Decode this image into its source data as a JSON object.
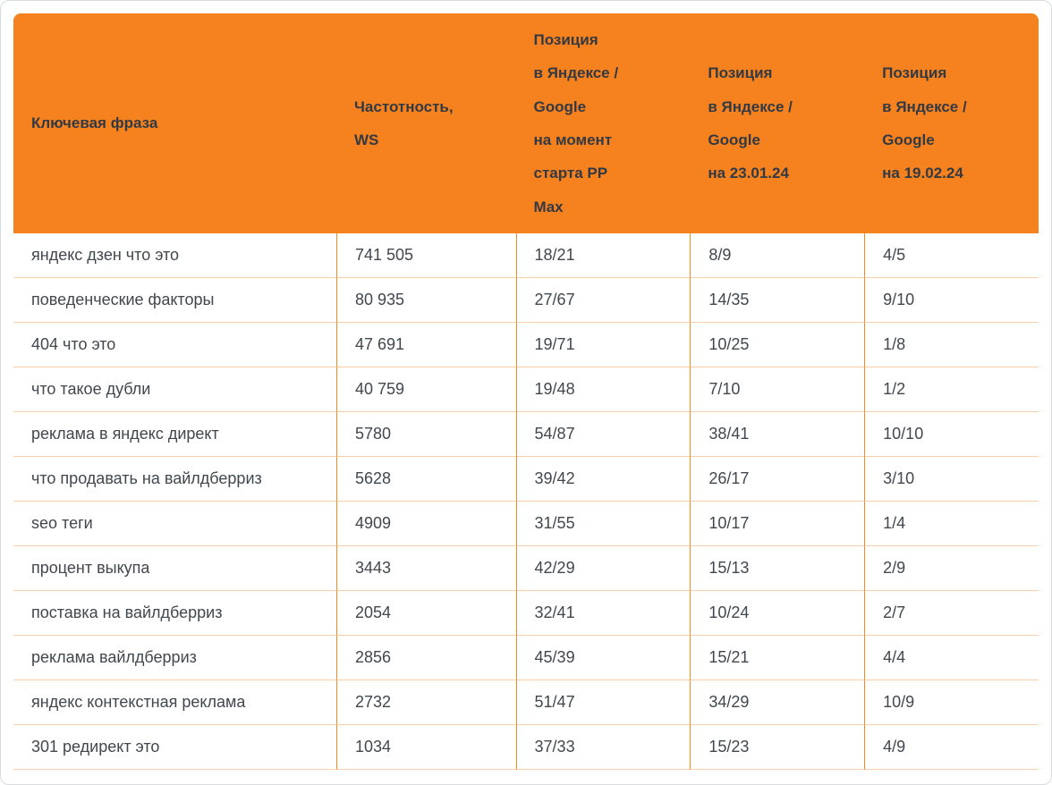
{
  "chart_data": {
    "type": "table",
    "columns": [
      "Ключевая фраза",
      "Частотность,\nWS",
      "Позиция\nв Яндексе /\nGoogle\nна момент\nстарта PP\nMax",
      "Позиция\nв Яндексе /\nGoogle\nна 23.01.24",
      "Позиция\nв Яндексе /\nGoogle\nна 19.02.24"
    ],
    "rows": [
      [
        "яндекс дзен что это",
        "741 505",
        "18/21",
        "8/9",
        "4/5"
      ],
      [
        "поведенческие факторы",
        "80 935",
        "27/67",
        "14/35",
        "9/10"
      ],
      [
        "404 что это",
        "47 691",
        "19/71",
        "10/25",
        "1/8"
      ],
      [
        "что такое дубли",
        "40 759",
        "19/48",
        "7/10",
        "1/2"
      ],
      [
        "реклама в яндекс директ",
        "5780",
        "54/87",
        "38/41",
        "10/10"
      ],
      [
        "что продавать на вайлдберриз",
        "5628",
        "39/42",
        "26/17",
        "3/10"
      ],
      [
        "seo теги",
        "4909",
        "31/55",
        "10/17",
        "1/4"
      ],
      [
        "процент выкупа",
        "3443",
        "42/29",
        "15/13",
        "2/9"
      ],
      [
        "поставка на вайлдберриз",
        "2054",
        "32/41",
        "10/24",
        "2/7"
      ],
      [
        "реклама вайлдберриз",
        "2856",
        "45/39",
        "15/21",
        "4/4"
      ],
      [
        "яндекс контекстная реклама",
        "2732",
        "51/47",
        "34/29",
        "10/9"
      ],
      [
        "301 редирект это",
        "1034",
        "37/33",
        "15/23",
        "4/9"
      ]
    ]
  },
  "colors": {
    "header_background": "#f5821f",
    "header_text": "#333942",
    "body_text": "#40474e",
    "row_divider": "#f9cda7",
    "column_divider": "#f5891f"
  }
}
